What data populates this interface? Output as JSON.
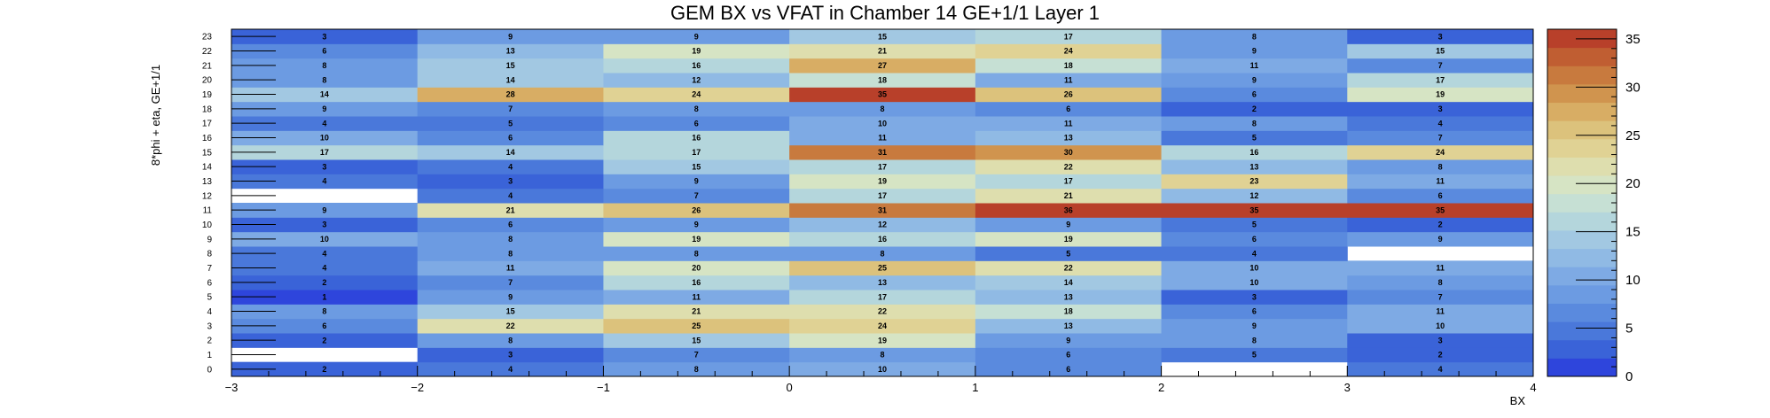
{
  "chart_data": {
    "type": "heatmap",
    "title": "GEM BX vs VFAT in Chamber 14 GE+1/1 Layer 1",
    "xlabel": "BX",
    "ylabel": "8*phi + eta, GE+1/1",
    "xlim": [
      -3,
      4
    ],
    "ylim": [
      0,
      24
    ],
    "x_ticks": [
      "−3",
      "−2",
      "−1",
      "0",
      "1",
      "2",
      "3",
      "4"
    ],
    "y_ticks": [
      "0",
      "1",
      "2",
      "3",
      "4",
      "5",
      "6",
      "7",
      "8",
      "9",
      "10",
      "11",
      "12",
      "13",
      "14",
      "15",
      "16",
      "17",
      "18",
      "19",
      "20",
      "21",
      "22",
      "23"
    ],
    "x_bins": [
      -3,
      -2,
      -1,
      0,
      1,
      2,
      3
    ],
    "y_bins": [
      0,
      1,
      2,
      3,
      4,
      5,
      6,
      7,
      8,
      9,
      10,
      11,
      12,
      13,
      14,
      15,
      16,
      17,
      18,
      19,
      20,
      21,
      22,
      23
    ],
    "z_range": [
      0,
      36
    ],
    "colorbar_ticks": [
      "0",
      "5",
      "10",
      "15",
      "20",
      "25",
      "30",
      "35"
    ],
    "values": [
      [
        2,
        4,
        8,
        10,
        6,
        null,
        4
      ],
      [
        null,
        3,
        7,
        8,
        6,
        5,
        2
      ],
      [
        2,
        8,
        15,
        19,
        9,
        8,
        3
      ],
      [
        6,
        22,
        25,
        24,
        13,
        9,
        10
      ],
      [
        8,
        15,
        21,
        22,
        18,
        6,
        11
      ],
      [
        1,
        9,
        11,
        17,
        13,
        3,
        7
      ],
      [
        2,
        7,
        16,
        13,
        14,
        10,
        8
      ],
      [
        4,
        11,
        20,
        25,
        22,
        10,
        11
      ],
      [
        4,
        8,
        8,
        8,
        5,
        4,
        null
      ],
      [
        10,
        8,
        19,
        16,
        19,
        6,
        9
      ],
      [
        3,
        6,
        9,
        12,
        9,
        5,
        2
      ],
      [
        9,
        21,
        26,
        31,
        36,
        35,
        35
      ],
      [
        null,
        4,
        7,
        17,
        21,
        12,
        6
      ],
      [
        4,
        3,
        9,
        19,
        17,
        23,
        11
      ],
      [
        3,
        4,
        15,
        17,
        22,
        13,
        8
      ],
      [
        17,
        14,
        17,
        31,
        30,
        16,
        24
      ],
      [
        10,
        6,
        16,
        11,
        13,
        5,
        7
      ],
      [
        4,
        5,
        6,
        10,
        11,
        8,
        4
      ],
      [
        9,
        7,
        8,
        8,
        6,
        2,
        3
      ],
      [
        14,
        28,
        24,
        35,
        26,
        6,
        19
      ],
      [
        8,
        14,
        12,
        18,
        11,
        9,
        17
      ],
      [
        8,
        15,
        16,
        27,
        18,
        11,
        7
      ],
      [
        6,
        13,
        19,
        21,
        24,
        9,
        15
      ],
      [
        3,
        9,
        9,
        15,
        17,
        8,
        3
      ]
    ],
    "colors": {
      "palette": [
        "#2e45dc",
        "#3a63d8",
        "#4a78da",
        "#5a8ade",
        "#6c9be2",
        "#7eaae4",
        "#90bae4",
        "#a2c8e2",
        "#b4d6dc",
        "#c6e0d4",
        "#d6e4c4",
        "#dedeae",
        "#e0d294",
        "#dcc27c",
        "#d8ad64",
        "#d0944e",
        "#c87a3e",
        "#c05e32",
        "#b8402a"
      ],
      "background": "#ffffff",
      "text": "#000000"
    },
    "grid": false
  }
}
